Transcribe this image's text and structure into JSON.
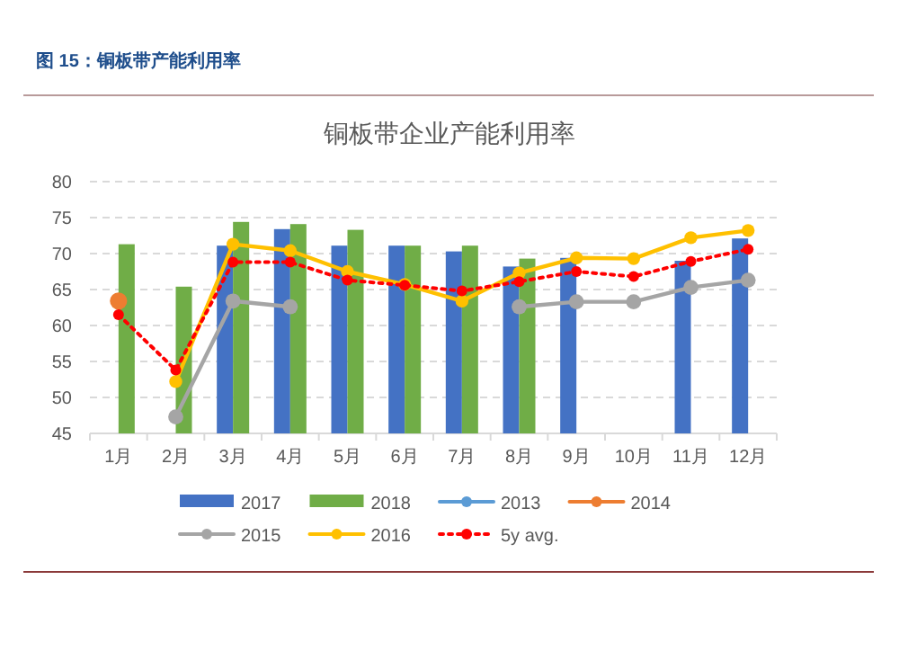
{
  "chart_data": {
    "type": "bar",
    "title": "图 15：铜板带产能利用率",
    "subtitle": "铜板带企业产能利用率",
    "categories": [
      "1月",
      "2月",
      "3月",
      "4月",
      "5月",
      "6月",
      "7月",
      "8月",
      "9月",
      "10月",
      "11月",
      "12月"
    ],
    "series": [
      {
        "name": "2017",
        "color": "#4472c4",
        "values": [
          null,
          null,
          71.1,
          73.4,
          71.1,
          71.1,
          70.3,
          68.2,
          69.4,
          null,
          69,
          72.1
        ]
      },
      {
        "name": "2018",
        "color": "#70ad47",
        "values": [
          71.3,
          65.4,
          74.4,
          74.1,
          73.3,
          71.1,
          71.1,
          69.3,
          null,
          null,
          null,
          null
        ]
      },
      {
        "name": "2013",
        "type": "line",
        "color": "#5b9bd5",
        "values": [
          null,
          null,
          null,
          null,
          null,
          null,
          null,
          null,
          null,
          null,
          null,
          null
        ]
      },
      {
        "name": "2014",
        "type": "line",
        "color": "#ed7d31",
        "values": [
          63.4,
          null,
          null,
          null,
          null,
          null,
          null,
          null,
          null,
          null,
          null,
          null
        ]
      },
      {
        "name": "2015",
        "type": "line",
        "color": "#a5a5a5",
        "values": [
          null,
          47.3,
          63.4,
          62.6,
          null,
          null,
          null,
          62.6,
          63.3,
          63.3,
          65.3,
          66.3
        ]
      },
      {
        "name": "2016",
        "type": "line",
        "color": "#ffc000",
        "values": [
          null,
          52.2,
          71.3,
          70.4,
          67.5,
          65.7,
          63.4,
          67.3,
          69.4,
          69.3,
          72.2,
          73.2
        ]
      },
      {
        "name": "5y avg.",
        "type": "line",
        "color": "#ff0000",
        "line_style": "dotted",
        "values": [
          61.5,
          53.8,
          68.8,
          68.8,
          66.3,
          65.6,
          64.8,
          66.1,
          67.5,
          66.8,
          68.9,
          70.6
        ]
      }
    ],
    "ylim": [
      45,
      80
    ],
    "yticks": [
      45,
      50,
      55,
      60,
      65,
      70,
      75,
      80
    ],
    "grid": "y",
    "legend": "bottom",
    "marker": "circle"
  }
}
